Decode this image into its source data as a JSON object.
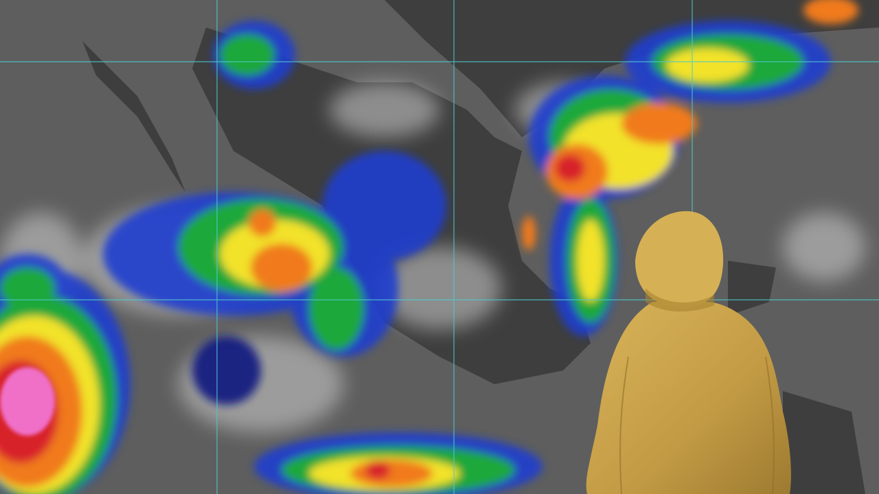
{
  "image": {
    "subject": "satellite-weather-map-with-person-in-raincoat",
    "colors": {
      "ocean": "#5a5a5a",
      "land": "#3c3c3c",
      "cloud_light": "#d8d8d8",
      "grid_line": "#4fc9cf",
      "precip_blue": "#1e3fd6",
      "precip_cyan": "#1fb6e0",
      "precip_green": "#1ea83a",
      "precip_yellow": "#f2e22a",
      "precip_orange": "#f07a1a",
      "precip_red": "#d8202a",
      "precip_pink": "#f070c8",
      "raincoat": "#c9a24a"
    }
  }
}
